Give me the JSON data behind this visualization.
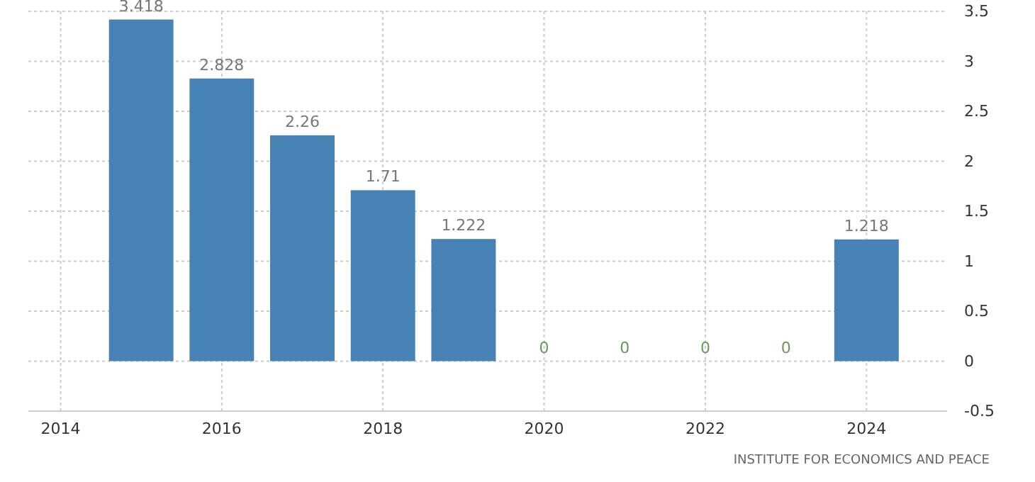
{
  "chart_data": {
    "type": "bar",
    "x": [
      2015,
      2016,
      2017,
      2018,
      2019,
      2020,
      2021,
      2022,
      2023,
      2024
    ],
    "values": [
      3.418,
      2.828,
      2.26,
      1.71,
      1.222,
      0,
      0,
      0,
      0,
      1.218
    ],
    "color": "#4682b4",
    "data_labels": true,
    "xlim": [
      2013.6,
      2025
    ],
    "xticks": [
      2014,
      2016,
      2018,
      2020,
      2022,
      2024
    ],
    "ylim": [
      -0.5,
      3.5
    ],
    "yticks": [
      -0.5,
      0,
      0.5,
      1,
      1.5,
      2,
      2.5,
      3,
      3.5
    ],
    "grid": true,
    "annotations": [
      "INSTITUTE FOR ECONOMICS AND PEACE"
    ]
  }
}
